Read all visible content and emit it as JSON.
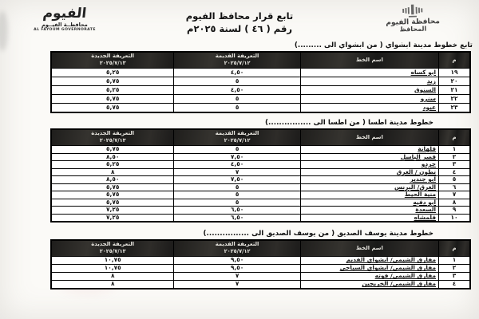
{
  "page": {
    "logo": {
      "calligraphy": "الفيوم",
      "name_ar": "محافظــة الفيــوم",
      "name_en": "AL FAYOUM GOVERNORATE"
    },
    "title_line1": "تابع قرار محافظ الفيوم",
    "title_line2": "رقم ( ٤٦ ) لسنة ٢٠٢٥م",
    "stamp": {
      "line1": "محافظة الفيوم",
      "line2": "المحافظ"
    }
  },
  "columns": {
    "serial": "م",
    "line_name": "اسم الخط",
    "old_label": "التعريفة القديمة",
    "old_date": "٢٠٢٥/٧/١٢",
    "new_label": "التعريفة الجديدة",
    "new_date": "٢٠٢٥/٧/١٣"
  },
  "tables": [
    {
      "section_title": "تابع خطوط مدينة ابشواي ( من ابشواي الى .........)",
      "rows": [
        {
          "no": "١٩",
          "line": "ابو كساه",
          "old": "٤,٥٠",
          "new": "٥,٢٥"
        },
        {
          "no": "٢٠",
          "line": "زيد",
          "old": "٥",
          "new": "٥,٧٥"
        },
        {
          "no": "٢١",
          "line": "السنوق",
          "old": "٤,٥٠",
          "new": "٥,٢٥"
        },
        {
          "no": "٢٢",
          "line": "سنرو",
          "old": "٥",
          "new": "٥,٧٥"
        },
        {
          "no": "٢٣",
          "line": "عيود",
          "old": "٥",
          "new": "٥,٧٥"
        }
      ]
    },
    {
      "section_title": "خطوط مدينة اطسا ( من اطسا الى ................)",
      "rows": [
        {
          "no": "١",
          "line": "قلهانة",
          "old": "٥",
          "new": "٥,٧٥"
        },
        {
          "no": "٢",
          "line": "قصر الباسل",
          "old": "٧,٥٠",
          "new": "٨,٥٠"
        },
        {
          "no": "٣",
          "line": "جردو",
          "old": "٤,٥٠",
          "new": "٥,٢٥"
        },
        {
          "no": "٤",
          "line": "تطون / الغرق",
          "old": "٧",
          "new": "٨"
        },
        {
          "no": "٥",
          "line": "ابو جندير",
          "old": "٧,٥٠",
          "new": "٨,٥٠"
        },
        {
          "no": "٦",
          "line": "الغرق/ البرنس",
          "old": "٥",
          "new": "٥,٧٥"
        },
        {
          "no": "٧",
          "line": "منية الحيط",
          "old": "٥",
          "new": "٥,٧٥"
        },
        {
          "no": "٨",
          "line": "ابو دفيه",
          "old": "٥",
          "new": "٥,٧٥"
        },
        {
          "no": "٩",
          "line": "السعدة",
          "old": "٦,٥٠",
          "new": "٧,٢٥"
        },
        {
          "no": "١٠",
          "line": "قلمشاه",
          "old": "٦,٥٠",
          "new": "٧,٢٥"
        }
      ]
    },
    {
      "section_title": "خطوط مدينة يوسف الصديق ( من يوسف الصديق الى ................)",
      "rows": [
        {
          "no": "١",
          "line": "مفارق الشيمي/ ابشواي القديم",
          "old": "٩,٥٠",
          "new": "١٠,٧٥"
        },
        {
          "no": "٢",
          "line": "مفارق الشيمي/ ابشواي السياحي",
          "old": "٩,٥٠",
          "new": "١٠,٧٥"
        },
        {
          "no": "٣",
          "line": "مفارق الشيمي/ قوته",
          "old": "٧",
          "new": "٨"
        },
        {
          "no": "٤",
          "line": "مفارق الشيمي/ الخريجين",
          "old": "٧",
          "new": "٨"
        }
      ]
    }
  ]
}
